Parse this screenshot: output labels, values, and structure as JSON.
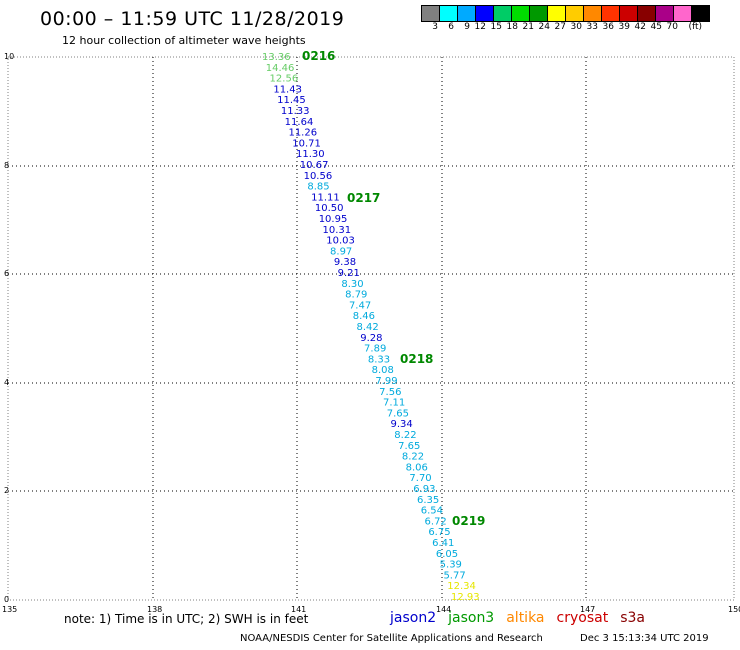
{
  "header": {
    "title": "00:00 – 11:59 UTC 11/28/2019",
    "subtitle": "12 hour collection of altimeter wave heights"
  },
  "colorbar": {
    "colors": [
      "#808080",
      "#00ffff",
      "#00aaff",
      "#0000ff",
      "#00cc66",
      "#00dd00",
      "#009900",
      "#ffff00",
      "#ffcc00",
      "#ff8800",
      "#ff3300",
      "#cc0000",
      "#880000",
      "#aa0088",
      "#ff66cc",
      "#000000"
    ],
    "ticks": [
      "3",
      "6",
      "9",
      "12",
      "15",
      "18",
      "21",
      "24",
      "27",
      "30",
      "33",
      "36",
      "39",
      "42",
      "45",
      "70"
    ],
    "unit": "(ft)"
  },
  "axes": {
    "x_ticks": [
      "135",
      "138",
      "141",
      "144",
      "147",
      "150"
    ],
    "y_ticks": [
      "0",
      "2",
      "4",
      "6",
      "8",
      "10"
    ]
  },
  "track": {
    "times": [
      "0216",
      "0217",
      "0218",
      "0219"
    ],
    "heights": [
      [
        "13.36",
        "#66cc66"
      ],
      [
        "14.46",
        "#66cc66"
      ],
      [
        "12.56",
        "#66cc66"
      ],
      [
        "11.43",
        "#0000cc"
      ],
      [
        "11.45",
        "#0000cc"
      ],
      [
        "11.33",
        "#0000cc"
      ],
      [
        "11.64",
        "#0000cc"
      ],
      [
        "11.26",
        "#0000cc"
      ],
      [
        "10.71",
        "#0000cc"
      ],
      [
        "11.30",
        "#0000cc"
      ],
      [
        "10.67",
        "#0000cc"
      ],
      [
        "10.56",
        "#0000cc"
      ],
      [
        "8.85",
        "#00aadd"
      ],
      [
        "11.11",
        "#0000cc"
      ],
      [
        "10.50",
        "#0000cc"
      ],
      [
        "10.95",
        "#0000cc"
      ],
      [
        "10.31",
        "#0000cc"
      ],
      [
        "10.03",
        "#0000cc"
      ],
      [
        "8.97",
        "#00aadd"
      ],
      [
        "9.38",
        "#0000cc"
      ],
      [
        "9.21",
        "#0000cc"
      ],
      [
        "8.30",
        "#00aadd"
      ],
      [
        "8.79",
        "#00aadd"
      ],
      [
        "7.47",
        "#00aadd"
      ],
      [
        "8.46",
        "#00aadd"
      ],
      [
        "8.42",
        "#00aadd"
      ],
      [
        "9.28",
        "#0000cc"
      ],
      [
        "7.89",
        "#00aadd"
      ],
      [
        "8.33",
        "#00aadd"
      ],
      [
        "8.08",
        "#00aadd"
      ],
      [
        "7.99",
        "#00aadd"
      ],
      [
        "7.56",
        "#00aadd"
      ],
      [
        "7.11",
        "#00aadd"
      ],
      [
        "7.65",
        "#00aadd"
      ],
      [
        "9.34",
        "#0000cc"
      ],
      [
        "8.22",
        "#00aadd"
      ],
      [
        "7.65",
        "#00aadd"
      ],
      [
        "8.22",
        "#00aadd"
      ],
      [
        "8.06",
        "#00aadd"
      ],
      [
        "7.70",
        "#00aadd"
      ],
      [
        "6.93",
        "#00aadd"
      ],
      [
        "6.35",
        "#00aadd"
      ],
      [
        "6.54",
        "#00aadd"
      ],
      [
        "6.72",
        "#00aadd"
      ],
      [
        "6.75",
        "#00aadd"
      ],
      [
        "6.41",
        "#00aadd"
      ],
      [
        "6.05",
        "#00aadd"
      ],
      [
        "5.39",
        "#00aadd"
      ],
      [
        "5.77",
        "#00aadd"
      ],
      [
        "12.34",
        "#e6e600"
      ],
      [
        "12.93",
        "#e6e600"
      ]
    ]
  },
  "note": "note: 1) Time is in UTC; 2) SWH is in feet",
  "legend": [
    [
      "jason2",
      "#0000cc"
    ],
    [
      "jason3",
      "#009900"
    ],
    [
      "altika",
      "#ff8800"
    ],
    [
      "cryosat",
      "#cc0000"
    ],
    [
      "s3a",
      "#880000"
    ]
  ],
  "footer": {
    "left": "NOAA/NESDIS Center for Satellite Applications and Research",
    "right": "Dec  3 15:13:34 UTC 2019"
  }
}
